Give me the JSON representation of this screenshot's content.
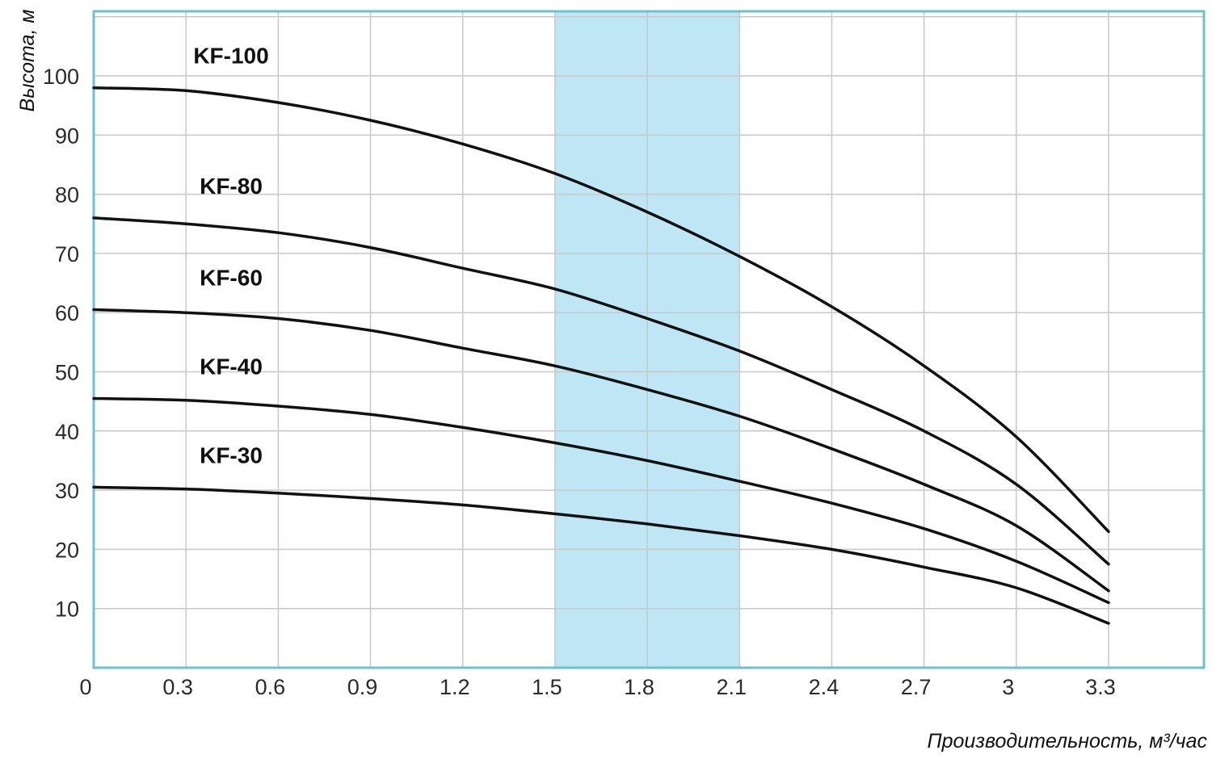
{
  "chart_data": {
    "type": "line",
    "title": "",
    "xlabel": "Производительность, м³/час",
    "ylabel": "Высота, м",
    "x_tick_labels": [
      "0",
      "0.3",
      "0.6",
      "0.9",
      "1.2",
      "1.5",
      "1.8",
      "2.1",
      "2.4",
      "2.7",
      "3",
      "3.3"
    ],
    "y_tick_labels": [
      "10",
      "20",
      "30",
      "40",
      "50",
      "60",
      "70",
      "80",
      "90",
      "100"
    ],
    "xlim": [
      0,
      3.6
    ],
    "ylim": [
      0,
      110
    ],
    "grid": true,
    "highlight_range": [
      1.5,
      2.1
    ],
    "colors": {
      "frame": "#6cc3cf",
      "grid": "#c8c8c8",
      "highlight": "#bfe6f5",
      "line": "#111111"
    },
    "series": [
      {
        "name": "KF-100",
        "points": [
          [
            0.0,
            98
          ],
          [
            0.3,
            97.5
          ],
          [
            0.6,
            95.5
          ],
          [
            0.9,
            92.5
          ],
          [
            1.2,
            88.5
          ],
          [
            1.5,
            83.5
          ],
          [
            1.8,
            77
          ],
          [
            2.1,
            69.5
          ],
          [
            2.4,
            61
          ],
          [
            2.7,
            51
          ],
          [
            3.0,
            39
          ],
          [
            3.3,
            23
          ]
        ]
      },
      {
        "name": "KF-80",
        "points": [
          [
            0.0,
            76
          ],
          [
            0.3,
            75
          ],
          [
            0.6,
            73.5
          ],
          [
            0.9,
            71
          ],
          [
            1.2,
            67.5
          ],
          [
            1.5,
            64
          ],
          [
            1.8,
            59
          ],
          [
            2.1,
            53.5
          ],
          [
            2.4,
            47
          ],
          [
            2.7,
            40
          ],
          [
            3.0,
            31
          ],
          [
            3.3,
            17.5
          ]
        ]
      },
      {
        "name": "KF-60",
        "points": [
          [
            0.0,
            60.5
          ],
          [
            0.3,
            60
          ],
          [
            0.6,
            59
          ],
          [
            0.9,
            57
          ],
          [
            1.2,
            54
          ],
          [
            1.5,
            51
          ],
          [
            1.8,
            47
          ],
          [
            2.1,
            42.5
          ],
          [
            2.4,
            37
          ],
          [
            2.7,
            31
          ],
          [
            3.0,
            24
          ],
          [
            3.3,
            13
          ]
        ]
      },
      {
        "name": "KF-40",
        "points": [
          [
            0.0,
            45.5
          ],
          [
            0.3,
            45.2
          ],
          [
            0.6,
            44.2
          ],
          [
            0.9,
            42.8
          ],
          [
            1.2,
            40.6
          ],
          [
            1.5,
            38
          ],
          [
            1.8,
            35
          ],
          [
            2.1,
            31.5
          ],
          [
            2.4,
            27.8
          ],
          [
            2.7,
            23.5
          ],
          [
            3.0,
            18
          ],
          [
            3.3,
            11
          ]
        ]
      },
      {
        "name": "KF-30",
        "points": [
          [
            0.0,
            30.5
          ],
          [
            0.3,
            30.2
          ],
          [
            0.6,
            29.5
          ],
          [
            0.9,
            28.6
          ],
          [
            1.2,
            27.5
          ],
          [
            1.5,
            26
          ],
          [
            1.8,
            24.3
          ],
          [
            2.1,
            22.3
          ],
          [
            2.4,
            20
          ],
          [
            2.7,
            17
          ],
          [
            3.0,
            13.5
          ],
          [
            3.3,
            7.5
          ]
        ]
      }
    ]
  }
}
